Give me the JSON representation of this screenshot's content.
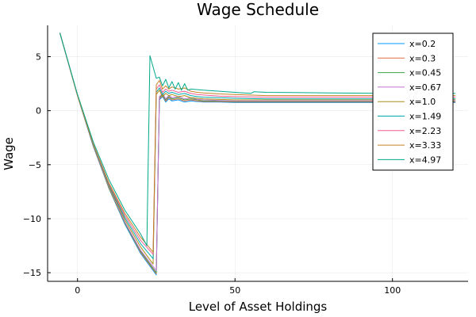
{
  "chart_data": {
    "type": "line",
    "title": "Wage Schedule",
    "xlabel": "Level of Asset Holdings",
    "ylabel": "Wage",
    "xlim": [
      -9.5,
      124
    ],
    "ylim": [
      -15.8,
      7.9
    ],
    "x_ticks": [
      0,
      50,
      100
    ],
    "y_ticks": [
      -15,
      -10,
      -5,
      0,
      5
    ],
    "x_tick_labels": [
      "0",
      "50",
      "100"
    ],
    "y_tick_labels": [
      "−15",
      "−10",
      "−5",
      "0",
      "5"
    ],
    "grid": true,
    "legend_position": "top-right",
    "series": [
      {
        "name": "x=0.2",
        "color": "#009AFA",
        "x": [
          -5.6,
          0,
          5,
          10,
          15,
          20,
          25,
          26,
          27,
          28,
          29,
          30,
          32,
          34,
          36,
          38,
          40,
          45,
          50,
          60,
          80,
          100,
          120
        ],
        "y": [
          7.2,
          1.4,
          -3.3,
          -7.2,
          -10.5,
          -13.2,
          -15.2,
          1.0,
          1.3,
          0.8,
          1.1,
          0.9,
          1.0,
          0.8,
          0.9,
          0.85,
          0.8,
          0.8,
          0.75,
          0.75,
          0.75,
          0.75,
          0.75
        ]
      },
      {
        "name": "x=0.3",
        "color": "#E36F47",
        "x": [
          -5.6,
          0,
          5,
          10,
          15,
          20,
          25,
          26,
          27,
          28,
          29,
          30,
          32,
          34,
          36,
          38,
          40,
          45,
          50,
          60,
          80,
          100,
          120
        ],
        "y": [
          7.2,
          1.4,
          -3.3,
          -7.2,
          -10.4,
          -13.1,
          -15.1,
          1.1,
          1.4,
          0.9,
          1.2,
          1.0,
          1.1,
          0.9,
          1.0,
          0.9,
          0.85,
          0.85,
          0.8,
          0.8,
          0.8,
          0.8,
          0.8
        ]
      },
      {
        "name": "x=0.45",
        "color": "#3EA44E",
        "x": [
          -5.6,
          0,
          5,
          10,
          15,
          20,
          25,
          26,
          27,
          28,
          29,
          30,
          32,
          34,
          36,
          38,
          40,
          45,
          50,
          60,
          80,
          100,
          120
        ],
        "y": [
          7.2,
          1.4,
          -3.3,
          -7.2,
          -10.4,
          -13.0,
          -15.0,
          1.2,
          1.5,
          1.0,
          1.3,
          1.1,
          1.2,
          1.0,
          1.1,
          1.0,
          0.9,
          0.9,
          0.85,
          0.85,
          0.85,
          0.85,
          0.85
        ]
      },
      {
        "name": "x=0.67",
        "color": "#C271D2",
        "x": [
          -5.6,
          0,
          5,
          10,
          15,
          20,
          25,
          26,
          27,
          28,
          29,
          30,
          32,
          34,
          36,
          38,
          40,
          45,
          50,
          60,
          80,
          100,
          120
        ],
        "y": [
          7.2,
          1.4,
          -3.3,
          -7.1,
          -10.3,
          -12.9,
          -14.8,
          1.3,
          1.6,
          1.1,
          1.4,
          1.2,
          1.3,
          1.1,
          1.2,
          1.05,
          1.0,
          0.95,
          0.9,
          0.9,
          0.9,
          0.9,
          0.9
        ]
      },
      {
        "name": "x=1.0",
        "color": "#AC8D18",
        "x": [
          -5.6,
          0,
          5,
          10,
          15,
          20,
          24,
          25,
          26,
          27,
          28,
          29,
          30,
          32,
          34,
          36,
          38,
          40,
          45,
          50,
          60,
          80,
          100,
          120
        ],
        "y": [
          7.2,
          1.4,
          -3.2,
          -7.0,
          -10.1,
          -12.6,
          -14.2,
          1.5,
          1.9,
          1.3,
          1.6,
          1.4,
          1.5,
          1.3,
          1.4,
          1.2,
          1.15,
          1.1,
          1.05,
          1.0,
          1.0,
          1.0,
          1.0,
          1.0
        ]
      },
      {
        "name": "x=1.49",
        "color": "#00A9AD",
        "x": [
          -5.6,
          0,
          5,
          10,
          15,
          20,
          24,
          25,
          26,
          27,
          28,
          29,
          30,
          32,
          34,
          36,
          38,
          40,
          45,
          50,
          60,
          80,
          100,
          120
        ],
        "y": [
          7.2,
          1.4,
          -3.2,
          -6.9,
          -9.9,
          -12.3,
          -13.7,
          1.7,
          2.1,
          1.5,
          1.8,
          1.6,
          1.7,
          1.5,
          1.6,
          1.4,
          1.3,
          1.25,
          1.2,
          1.15,
          1.1,
          1.1,
          1.1,
          1.1
        ]
      },
      {
        "name": "x=2.23",
        "color": "#ED5E93",
        "x": [
          -5.6,
          0,
          5,
          10,
          15,
          20,
          24,
          25,
          26,
          27,
          28,
          29,
          30,
          32,
          34,
          36,
          38,
          40,
          45,
          50,
          60,
          80,
          100,
          120
        ],
        "y": [
          7.2,
          1.4,
          -3.1,
          -6.8,
          -9.7,
          -12.0,
          -13.3,
          2.0,
          2.4,
          1.7,
          2.0,
          1.8,
          1.9,
          1.7,
          1.8,
          1.6,
          1.5,
          1.45,
          1.35,
          1.3,
          1.25,
          1.25,
          1.25,
          1.25
        ]
      },
      {
        "name": "x=3.33",
        "color": "#C68225",
        "x": [
          -5.6,
          0,
          5,
          10,
          15,
          20,
          24,
          25,
          26,
          27,
          28,
          29,
          30,
          32,
          34,
          36,
          38,
          40,
          45,
          50,
          60,
          80,
          100,
          120
        ],
        "y": [
          7.2,
          1.4,
          -3.1,
          -6.7,
          -9.5,
          -11.7,
          -13.1,
          2.4,
          2.8,
          2.0,
          2.3,
          2.0,
          2.2,
          2.0,
          2.1,
          1.8,
          1.7,
          1.65,
          1.55,
          1.5,
          1.4,
          1.4,
          1.4,
          1.4
        ]
      },
      {
        "name": "x=4.97",
        "color": "#00A98D",
        "x": [
          -5.6,
          0,
          5,
          10,
          15,
          20,
          22,
          23,
          25,
          26,
          27,
          28,
          29,
          30,
          31,
          32,
          33,
          34,
          35,
          36,
          40,
          45,
          50,
          55,
          56,
          60,
          80,
          100,
          120
        ],
        "y": [
          7.2,
          1.5,
          -2.9,
          -6.4,
          -9.2,
          -11.4,
          -12.5,
          5.1,
          3.0,
          3.1,
          2.3,
          2.9,
          2.1,
          2.7,
          2.0,
          2.6,
          1.9,
          2.5,
          1.9,
          2.0,
          1.9,
          1.8,
          1.7,
          1.6,
          1.75,
          1.7,
          1.65,
          1.6,
          1.6
        ]
      }
    ]
  }
}
